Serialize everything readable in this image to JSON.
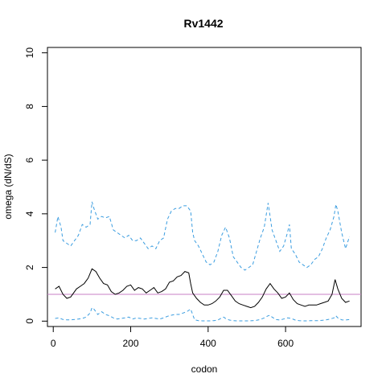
{
  "chart_data": {
    "type": "line",
    "title": "Rv1442",
    "xlabel": "codon",
    "ylabel": "omega (dN/dS)",
    "xlim": [
      -15,
      795
    ],
    "ylim": [
      -0.2,
      10.2
    ],
    "xticks": [
      0,
      200,
      400,
      600
    ],
    "yticks": [
      0,
      2,
      4,
      6,
      8,
      10
    ],
    "reference_line": {
      "y": 1,
      "color": "#c77fc4"
    },
    "series": [
      {
        "style": "solid",
        "color": "#000000",
        "x": [
          5,
          15,
          25,
          35,
          45,
          60,
          70,
          80,
          90,
          100,
          110,
          120,
          130,
          140,
          150,
          160,
          170,
          180,
          190,
          200,
          210,
          220,
          230,
          240,
          250,
          260,
          270,
          280,
          290,
          300,
          310,
          320,
          330,
          340,
          350,
          355,
          360,
          370,
          380,
          390,
          400,
          410,
          420,
          430,
          440,
          450,
          460,
          470,
          480,
          490,
          500,
          510,
          520,
          530,
          540,
          550,
          560,
          570,
          580,
          590,
          600,
          610,
          620,
          630,
          640,
          650,
          660,
          670,
          680,
          690,
          700,
          710,
          720,
          728,
          735,
          745,
          755,
          765
        ],
        "y": [
          1.2,
          1.3,
          1.0,
          0.85,
          0.9,
          1.2,
          1.3,
          1.4,
          1.6,
          1.95,
          1.85,
          1.6,
          1.4,
          1.35,
          1.1,
          1.0,
          1.05,
          1.15,
          1.3,
          1.35,
          1.15,
          1.25,
          1.2,
          1.05,
          1.15,
          1.25,
          1.05,
          1.1,
          1.2,
          1.45,
          1.5,
          1.65,
          1.7,
          1.85,
          1.8,
          1.4,
          1.05,
          0.85,
          0.7,
          0.6,
          0.6,
          0.65,
          0.75,
          0.9,
          1.15,
          1.15,
          0.95,
          0.75,
          0.65,
          0.6,
          0.55,
          0.5,
          0.55,
          0.7,
          0.9,
          1.2,
          1.4,
          1.2,
          1.05,
          0.85,
          0.9,
          1.05,
          0.8,
          0.65,
          0.6,
          0.55,
          0.6,
          0.6,
          0.6,
          0.65,
          0.7,
          0.75,
          1.0,
          1.55,
          1.2,
          0.85,
          0.7,
          0.75
        ]
      },
      {
        "style": "dashed",
        "color": "#3b9de0",
        "x": [
          5,
          12,
          20,
          25,
          35,
          45,
          55,
          65,
          75,
          85,
          95,
          100,
          105,
          115,
          125,
          135,
          145,
          155,
          165,
          175,
          185,
          195,
          205,
          215,
          225,
          235,
          245,
          255,
          265,
          275,
          285,
          295,
          305,
          315,
          325,
          335,
          345,
          355,
          360,
          365,
          375,
          385,
          395,
          405,
          415,
          425,
          435,
          445,
          455,
          465,
          475,
          485,
          495,
          505,
          515,
          525,
          535,
          545,
          555,
          560,
          565,
          575,
          585,
          595,
          605,
          610,
          615,
          625,
          635,
          645,
          655,
          665,
          675,
          685,
          695,
          705,
          715,
          725,
          730,
          735,
          745,
          755,
          765
        ],
        "y": [
          3.3,
          3.9,
          3.5,
          3.0,
          2.9,
          2.8,
          3.0,
          3.2,
          3.6,
          3.5,
          3.6,
          4.45,
          4.2,
          3.8,
          3.9,
          3.85,
          3.9,
          3.4,
          3.3,
          3.2,
          3.1,
          3.2,
          3.0,
          3.0,
          3.1,
          2.9,
          2.7,
          2.8,
          2.7,
          3.0,
          3.1,
          3.8,
          4.1,
          4.2,
          4.2,
          4.3,
          4.3,
          4.1,
          3.3,
          3.0,
          2.8,
          2.5,
          2.2,
          2.1,
          2.2,
          2.6,
          3.2,
          3.5,
          3.1,
          2.4,
          2.2,
          2.0,
          1.9,
          2.0,
          2.1,
          2.6,
          3.1,
          3.5,
          4.4,
          3.9,
          3.4,
          3.0,
          2.6,
          2.8,
          3.3,
          3.6,
          2.7,
          2.5,
          2.2,
          2.1,
          2.0,
          2.1,
          2.3,
          2.4,
          2.7,
          3.1,
          3.4,
          3.9,
          4.35,
          4.1,
          3.3,
          2.7,
          3.15
        ]
      },
      {
        "style": "dashed",
        "color": "#3b9de0",
        "x": [
          5,
          15,
          25,
          35,
          45,
          55,
          65,
          75,
          85,
          95,
          100,
          105,
          115,
          125,
          135,
          145,
          155,
          165,
          175,
          185,
          195,
          205,
          215,
          225,
          235,
          245,
          255,
          265,
          275,
          285,
          295,
          305,
          315,
          325,
          335,
          345,
          355,
          365,
          375,
          385,
          395,
          405,
          415,
          425,
          435,
          440,
          445,
          455,
          465,
          475,
          485,
          495,
          505,
          515,
          525,
          535,
          545,
          555,
          560,
          565,
          575,
          585,
          595,
          605,
          615,
          625,
          635,
          645,
          655,
          665,
          675,
          685,
          695,
          705,
          715,
          725,
          730,
          735,
          745,
          755,
          765
        ],
        "y": [
          0.1,
          0.12,
          0.06,
          0.05,
          0.05,
          0.06,
          0.08,
          0.1,
          0.15,
          0.3,
          0.5,
          0.45,
          0.25,
          0.35,
          0.25,
          0.2,
          0.12,
          0.08,
          0.1,
          0.12,
          0.15,
          0.08,
          0.12,
          0.1,
          0.08,
          0.1,
          0.12,
          0.1,
          0.08,
          0.12,
          0.18,
          0.22,
          0.25,
          0.25,
          0.3,
          0.35,
          0.45,
          0.05,
          0.02,
          0.01,
          0.01,
          0.01,
          0.02,
          0.04,
          0.12,
          0.15,
          0.1,
          0.04,
          0.02,
          0.01,
          0.01,
          0.01,
          0.01,
          0.02,
          0.03,
          0.06,
          0.12,
          0.2,
          0.22,
          0.15,
          0.06,
          0.04,
          0.08,
          0.12,
          0.1,
          0.04,
          0.02,
          0.01,
          0.01,
          0.02,
          0.02,
          0.02,
          0.03,
          0.05,
          0.08,
          0.12,
          0.2,
          0.12,
          0.05,
          0.04,
          0.06
        ]
      }
    ]
  }
}
